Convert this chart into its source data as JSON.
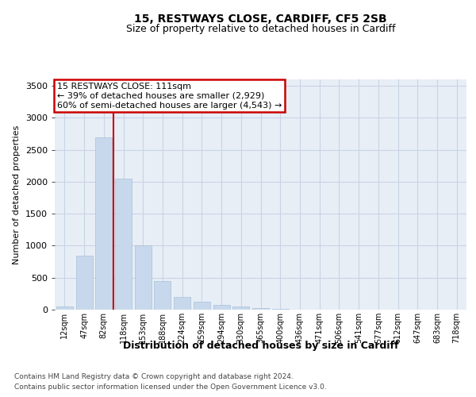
{
  "title1": "15, RESTWAYS CLOSE, CARDIFF, CF5 2SB",
  "title2": "Size of property relative to detached houses in Cardiff",
  "xlabel": "Distribution of detached houses by size in Cardiff",
  "ylabel": "Number of detached properties",
  "categories": [
    "12sqm",
    "47sqm",
    "82sqm",
    "118sqm",
    "153sqm",
    "188sqm",
    "224sqm",
    "259sqm",
    "294sqm",
    "330sqm",
    "365sqm",
    "400sqm",
    "436sqm",
    "471sqm",
    "506sqm",
    "541sqm",
    "577sqm",
    "612sqm",
    "647sqm",
    "683sqm",
    "718sqm"
  ],
  "values": [
    50,
    850,
    2700,
    2050,
    1000,
    450,
    200,
    130,
    70,
    50,
    30,
    15,
    5,
    2,
    1,
    0,
    0,
    0,
    0,
    0,
    0
  ],
  "bar_color": "#c8d8ec",
  "bar_edge_color": "#a8c0d8",
  "grid_color": "#c8d4e4",
  "background_color": "#e8eef6",
  "annotation_box_color": "#cc0000",
  "vline_color": "#cc0000",
  "vline_position": 2.5,
  "annotation_text_line1": "15 RESTWAYS CLOSE: 111sqm",
  "annotation_text_line2": "← 39% of detached houses are smaller (2,929)",
  "annotation_text_line3": "60% of semi-detached houses are larger (4,543) →",
  "footer1": "Contains HM Land Registry data © Crown copyright and database right 2024.",
  "footer2": "Contains public sector information licensed under the Open Government Licence v3.0.",
  "ylim": [
    0,
    3600
  ],
  "yticks": [
    0,
    500,
    1000,
    1500,
    2000,
    2500,
    3000,
    3500
  ],
  "title1_fontsize": 10,
  "title2_fontsize": 9,
  "ylabel_fontsize": 8,
  "xlabel_fontsize": 9,
  "tick_fontsize": 7,
  "footer_fontsize": 6.5,
  "ann_fontsize": 8
}
